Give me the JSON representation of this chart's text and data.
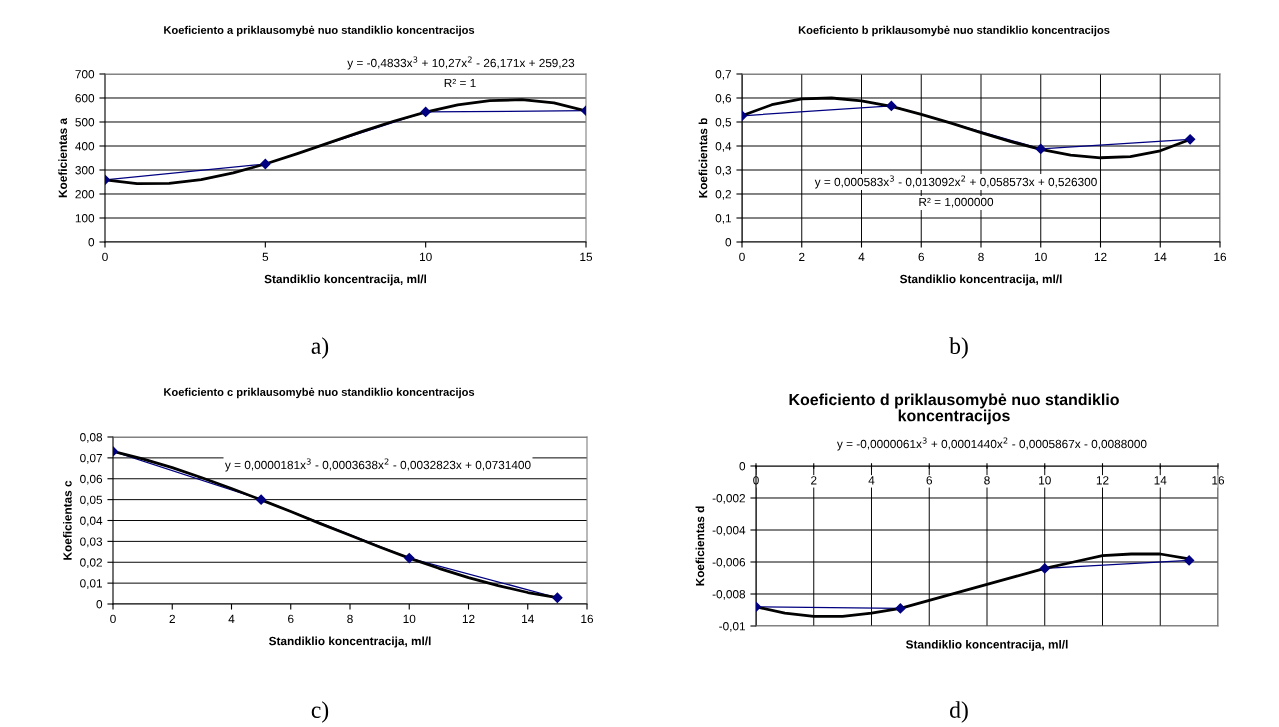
{
  "chart_data": [
    {
      "type": "line",
      "title": "Koeficiento a priklausomybė nuo standiklio koncentracijos",
      "xlabel": "Standiklio koncentracija, ml/l",
      "ylabel": "Koeficientas a",
      "annotations": [
        "y = -0,4833x$^{3}$ + 10,27x$^{2}$ - 26,171x + 259,23",
        "R² = 1",
        "a)"
      ],
      "x": [
        0,
        5,
        10,
        15
      ],
      "series": [
        {
          "color": "#000080",
          "marker": "diamond",
          "line_style": "solid",
          "values": [
            259,
            325,
            542,
            547
          ]
        },
        {
          "type": "line",
          "color": "#000000",
          "marker": "none",
          "line_style": "solid",
          "x": [
            0,
            1,
            2,
            3,
            4,
            5,
            6,
            7,
            8,
            9,
            10,
            11,
            12,
            13,
            14,
            15
          ],
          "values": [
            259,
            243,
            244,
            260,
            288,
            325,
            368,
            414,
            460,
            503,
            541,
            571,
            589,
            593,
            580,
            546
          ]
        }
      ],
      "xlim": [
        0,
        15
      ],
      "xticks": [
        0,
        5,
        10,
        15
      ],
      "ylim": [
        0,
        700
      ],
      "yticks": [
        0,
        100,
        200,
        300,
        400,
        500,
        600,
        700
      ],
      "grid": "y"
    },
    {
      "type": "line",
      "title": "Koeficiento b priklausomybė nuo standiklio koncentracijos",
      "xlabel": "Standiklio koncentracija, ml/l",
      "ylabel": "Koeficientas b",
      "annotations": [
        "y = 0,000583x$^{3}$ - 0,013092x$^{2}$ + 0,058573x + 0,526300",
        "R² = 1,000000",
        "b)"
      ],
      "x": [
        0,
        5,
        10,
        15
      ],
      "series": [
        {
          "color": "#000080",
          "marker": "diamond",
          "line_style": "solid",
          "values": [
            0.526,
            0.567,
            0.388,
            0.428
          ]
        },
        {
          "type": "line",
          "color": "#000000",
          "marker": "none",
          "line_style": "solid",
          "x": [
            0,
            1,
            2,
            3,
            4,
            5,
            6,
            7,
            8,
            9,
            10,
            11,
            12,
            13,
            14,
            15
          ],
          "values": [
            0.526,
            0.572,
            0.596,
            0.6,
            0.588,
            0.565,
            0.532,
            0.495,
            0.456,
            0.418,
            0.386,
            0.362,
            0.351,
            0.356,
            0.38,
            0.427
          ]
        }
      ],
      "xlim": [
        0,
        16
      ],
      "xticks": [
        0,
        2,
        4,
        6,
        8,
        10,
        12,
        14,
        16
      ],
      "ylim": [
        0,
        0.7
      ],
      "yticks": [
        0,
        {
          "value": 0.1,
          "label": "0,1"
        },
        {
          "value": 0.2,
          "label": "0,2"
        },
        {
          "value": 0.3,
          "label": "0,3"
        },
        {
          "value": 0.4,
          "label": "0,4"
        },
        {
          "value": 0.5,
          "label": "0,5"
        },
        {
          "value": 0.6,
          "label": "0,6"
        },
        {
          "value": 0.7,
          "label": "0,7"
        }
      ],
      "grid": true
    },
    {
      "type": "line",
      "title": "Koeficiento c priklausomybė nuo standiklio koncentracijos",
      "xlabel": "Standiklio koncentracija, ml/l",
      "ylabel": "Koeficientas c",
      "annotations": [
        "y = 0,0000181x$^{3}$ - 0,0003638x$^{2}$ - 0,0032823x + 0,0731400",
        "c)"
      ],
      "x": [
        0,
        5,
        10,
        15
      ],
      "series": [
        {
          "color": "#000080",
          "marker": "diamond",
          "line_style": "solid",
          "values": [
            0.0731,
            0.05,
            0.022,
            0.003
          ]
        },
        {
          "type": "line",
          "color": "#000000",
          "marker": "none",
          "line_style": "solid",
          "x": [
            0,
            1,
            2,
            3,
            4,
            5,
            6,
            7,
            8,
            9,
            10,
            11,
            12,
            13,
            14,
            15
          ],
          "values": [
            0.0731,
            0.0695,
            0.0653,
            0.0605,
            0.0553,
            0.0499,
            0.0443,
            0.0385,
            0.0329,
            0.0273,
            0.022,
            0.0171,
            0.0126,
            0.0088,
            0.0055,
            0.0031
          ]
        }
      ],
      "xlim": [
        0,
        16
      ],
      "xticks": [
        0,
        2,
        4,
        6,
        8,
        10,
        12,
        14,
        16
      ],
      "ylim": [
        0,
        0.08
      ],
      "yticks": [
        0,
        {
          "value": 0.01,
          "label": "0,01"
        },
        {
          "value": 0.02,
          "label": "0,02"
        },
        {
          "value": 0.03,
          "label": "0,03"
        },
        {
          "value": 0.04,
          "label": "0,04"
        },
        {
          "value": 0.05,
          "label": "0,05"
        },
        {
          "value": 0.06,
          "label": "0,06"
        },
        {
          "value": 0.07,
          "label": "0,07"
        },
        {
          "value": 0.08,
          "label": "0,08"
        }
      ],
      "grid": "y"
    },
    {
      "type": "line",
      "title": "Koeficiento d priklausomybė nuo standiklio\nkoncentracijos",
      "xlabel": "Standiklio koncentracija, ml/l",
      "ylabel": "Koeficientas d",
      "annotations": [
        "y = -0,0000061x$^{3}$ + 0,0001440x$^{2}$ - 0,0005867x - 0,0088000",
        "d)"
      ],
      "x": [
        0,
        5,
        10,
        15
      ],
      "series": [
        {
          "color": "#000080",
          "marker": "diamond",
          "line_style": "solid",
          "values": [
            -0.0088,
            -0.0089,
            -0.0064,
            -0.0059
          ]
        },
        {
          "type": "line",
          "color": "#000000",
          "marker": "none",
          "line_style": "solid",
          "x": [
            0,
            1,
            2,
            3,
            4,
            5,
            6,
            7,
            8,
            9,
            10,
            11,
            12,
            13,
            14,
            15
          ],
          "values": [
            -0.0088,
            -0.0092,
            -0.0094,
            -0.0094,
            -0.0092,
            -0.0089,
            -0.0084,
            -0.0079,
            -0.0074,
            -0.0069,
            -0.0064,
            -0.006,
            -0.0056,
            -0.0055,
            -0.0055,
            -0.0058
          ]
        }
      ],
      "xlim": [
        0,
        16
      ],
      "xticks": [
        0,
        2,
        4,
        6,
        8,
        10,
        12,
        14,
        16
      ],
      "ylim": [
        -0.01,
        0
      ],
      "yticks": [
        {
          "value": -0.01,
          "label": "-0,01"
        },
        {
          "value": -0.008,
          "label": "-0,008"
        },
        {
          "value": -0.006,
          "label": "-0,006"
        },
        {
          "value": -0.004,
          "label": "-0,004"
        },
        {
          "value": -0.002,
          "label": "-0,002"
        },
        0
      ],
      "grid": true
    }
  ]
}
